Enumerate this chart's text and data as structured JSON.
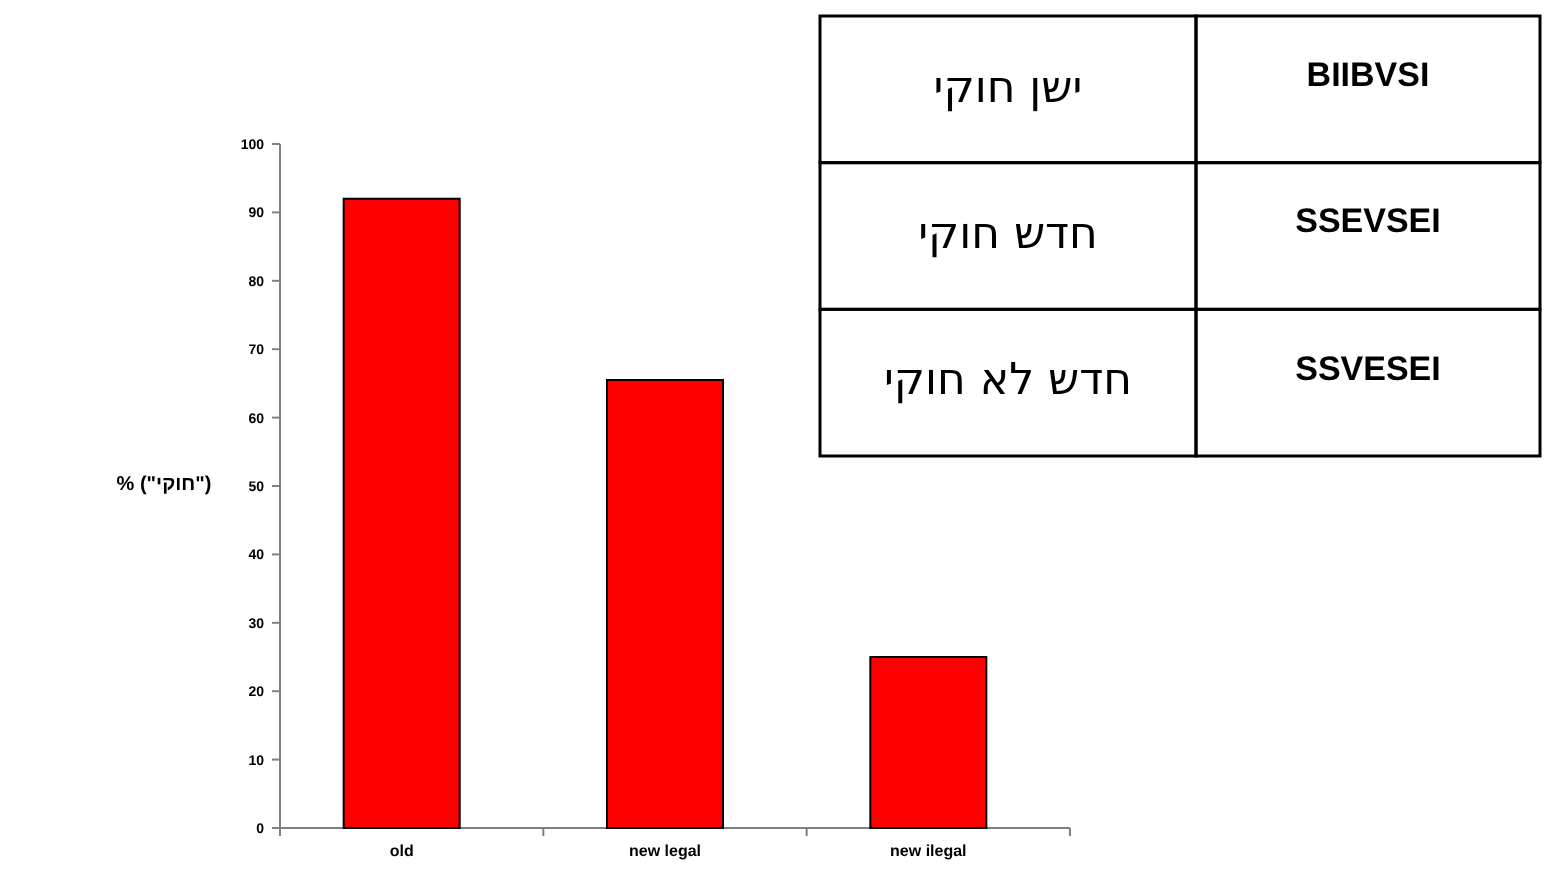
{
  "chart_data": {
    "type": "bar",
    "categories": [
      "old",
      "new legal",
      "new ilegal"
    ],
    "values": [
      92,
      65.5,
      25
    ],
    "color": "#ff0000",
    "ylabel": "% (\"חוקי\")",
    "ylim": [
      0,
      100
    ],
    "yticks": [
      0,
      10,
      20,
      30,
      40,
      50,
      60,
      70,
      80,
      90,
      100
    ],
    "annotations": [
      "ישן חוקי",
      "BIIBVSI",
      "חדש חוקי",
      "SSEVSEI",
      "חדש לא חוקי",
      "SSVESEI"
    ]
  }
}
